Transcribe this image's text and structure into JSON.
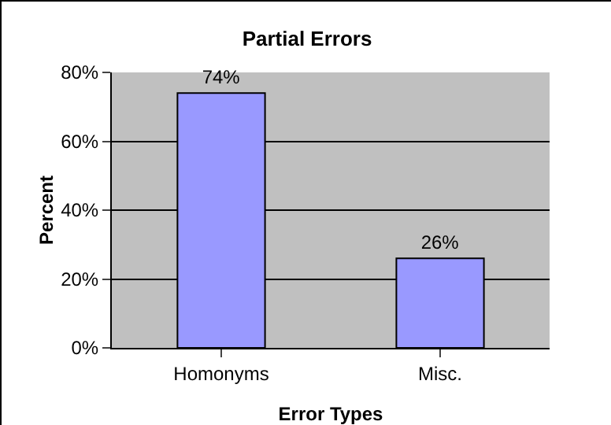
{
  "chart_data": {
    "type": "bar",
    "title": "Partial Errors",
    "xlabel": "Error Types",
    "ylabel": "Percent",
    "categories": [
      "Homonyms",
      "Misc."
    ],
    "values": [
      74,
      26
    ],
    "color": "#9999ff",
    "value_labels": [
      "74%",
      "26%"
    ],
    "ylim": [
      0,
      80
    ],
    "yticks": [
      {
        "value": 0,
        "label": "0%"
      },
      {
        "value": 20,
        "label": "20%"
      },
      {
        "value": 40,
        "label": "40%"
      },
      {
        "value": 60,
        "label": "60%"
      },
      {
        "value": 80,
        "label": "80%"
      }
    ],
    "grid": "y",
    "legend": false
  }
}
